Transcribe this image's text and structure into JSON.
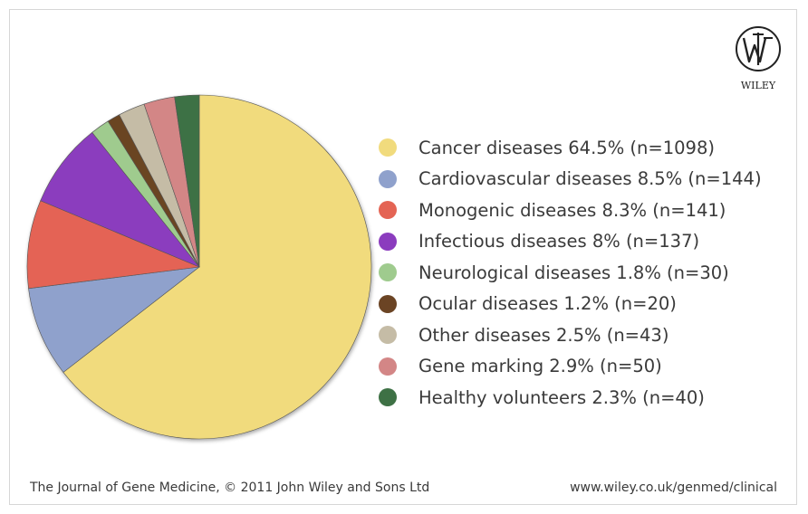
{
  "chart_data": {
    "type": "pie",
    "slices": [
      {
        "label": "Cancer diseases 64.5% (n=1098)",
        "value": 64.5,
        "color": "#f1db7d"
      },
      {
        "label": "Cardiovascular diseases 8.5% (n=144)",
        "value": 8.5,
        "color": "#8fa1cc"
      },
      {
        "label": "Monogenic diseases 8.3% (n=141)",
        "value": 8.3,
        "color": "#e46454"
      },
      {
        "label": "Infectious diseases 8% (n=137)",
        "value": 8.0,
        "color": "#8b3cbe"
      },
      {
        "label": "Neurological diseases 1.8% (n=30)",
        "value": 1.8,
        "color": "#9fcb8e"
      },
      {
        "label": "Ocular diseases 1.2% (n=20)",
        "value": 1.2,
        "color": "#6b4424"
      },
      {
        "label": "Other diseases 2.5% (n=43)",
        "value": 2.5,
        "color": "#c5bca6"
      },
      {
        "label": "Gene marking 2.9% (n=50)",
        "value": 2.9,
        "color": "#d38686"
      },
      {
        "label": "Healthy volunteers 2.3% (n=40)",
        "value": 2.3,
        "color": "#3e7145"
      }
    ],
    "legend_position": "right"
  },
  "logo": {
    "text": "WILEY"
  },
  "footer": {
    "left": "The Journal of Gene Medicine, © 2011 John Wiley and Sons Ltd",
    "right": "www.wiley.co.uk/genmed/clinical"
  }
}
